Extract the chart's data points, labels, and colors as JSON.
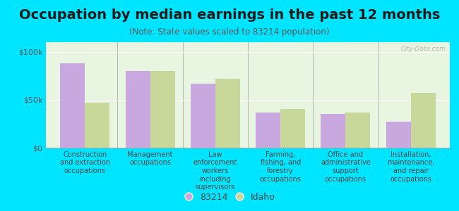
{
  "title": "Occupation by median earnings in the past 12 months",
  "subtitle": "(Note: State values scaled to 83214 population)",
  "categories": [
    "Construction\nand extraction\noccupations",
    "Management\noccupations",
    "Law\nenforcement\nworkers\nincluding\nsupervisors",
    "Farming,\nfishing, and\nforestry\noccupations",
    "Office and\nadministrative\nsupport\noccupations",
    "Installation,\nmaintenance,\nand repair\noccupations"
  ],
  "values_83214": [
    88000,
    80000,
    67000,
    37000,
    35000,
    27000
  ],
  "values_idaho": [
    47000,
    80000,
    72000,
    40000,
    37000,
    57000
  ],
  "color_83214": "#c9a8e0",
  "color_idaho": "#c8d89a",
  "background_outer": "#00e5ff",
  "background_plot": "#e8f5e0",
  "yticks": [
    0,
    50000,
    100000
  ],
  "ytick_labels": [
    "$0",
    "$50k",
    "$100k"
  ],
  "ylim": [
    0,
    110000
  ],
  "legend_label_83214": "83214",
  "legend_label_idaho": "Idaho",
  "watermark": "City-Data.com",
  "title_fontsize": 14,
  "subtitle_fontsize": 8.5,
  "tick_fontsize": 8,
  "cat_fontsize": 7
}
